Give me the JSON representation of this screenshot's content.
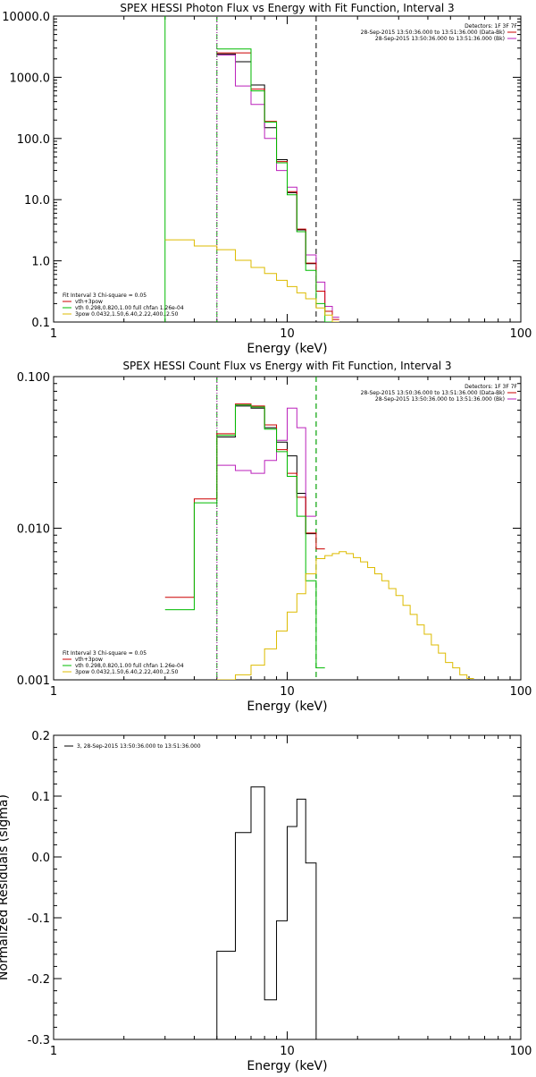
{
  "chart_data": [
    {
      "type": "line",
      "title": "SPEX HESSI Photon Flux vs Energy with Fit Function, Interval 3",
      "xlabel": "Energy (keV)",
      "ylabel": "",
      "x_scale": "log",
      "y_scale": "log",
      "xlim": [
        1,
        100
      ],
      "ylim": [
        0.1,
        10000
      ],
      "x_ticks": [
        {
          "v": 1,
          "label": "1"
        },
        {
          "v": 10,
          "label": "10"
        },
        {
          "v": 100,
          "label": "100"
        }
      ],
      "y_ticks": [
        {
          "v": 0.1,
          "label": "0.1"
        },
        {
          "v": 1,
          "label": "1.0"
        },
        {
          "v": 10,
          "label": "10.0"
        },
        {
          "v": 100,
          "label": "100.0"
        },
        {
          "v": 1000,
          "label": "1000.0"
        },
        {
          "v": 10000,
          "label": "10000.0"
        }
      ],
      "top_legend": {
        "header": "Detectors: 1F 3F 7F",
        "items": [
          {
            "text": "28-Sep-2015 13:50:36.000 to 13:51:36.000 (Data-Bk)",
            "color": "#cc0000"
          },
          {
            "text": "28-Sep-2015 13:50:36.000 to 13:51:36.000 (Bk)",
            "color": "#bb22bb"
          }
        ]
      },
      "bottom_legend": {
        "header": "Fit Interval 3   Chi-square = 0.05",
        "items": [
          {
            "text": "vth+3pow",
            "color": "#cc0000"
          },
          {
            "text": "vth 0.298,0.820,1.00  full chfan 1.26e-04",
            "color": "#00bb00"
          },
          {
            "text": "3pow 0.0432,1.50,6.40,2.22,400.,2.50",
            "color": "#ddbb00"
          }
        ]
      },
      "vlines": [
        {
          "x": 3.0,
          "color": "#00bb00",
          "style": "solid"
        },
        {
          "x": 5.0,
          "color": "#000000",
          "style": "dotted"
        },
        {
          "x": 5.0,
          "color": "#00bb00",
          "style": "dashed"
        },
        {
          "x": 5.0,
          "color": "#bb22bb",
          "style": "dotted"
        },
        {
          "x": 13.3,
          "color": "#000000",
          "style": "dashed"
        }
      ],
      "series": [
        {
          "role": "data",
          "color": "#000000",
          "bins": [
            [
              5,
              6,
              2400
            ],
            [
              6,
              7,
              1800
            ],
            [
              7,
              8,
              750
            ],
            [
              8,
              9,
              150
            ],
            [
              9,
              10,
              45
            ],
            [
              10,
              11,
              13
            ],
            [
              11,
              12,
              3.2
            ],
            [
              12,
              13.3,
              0.9
            ]
          ]
        },
        {
          "role": "background",
          "color": "#bb22bb",
          "bins": [
            [
              5,
              6,
              2300
            ],
            [
              6,
              7,
              720
            ],
            [
              7,
              8,
              360
            ],
            [
              8,
              9,
              100
            ],
            [
              9,
              10,
              30
            ],
            [
              10,
              11,
              16
            ],
            [
              11,
              12,
              3.0
            ],
            [
              12,
              13.3,
              1.25
            ],
            [
              13.3,
              14.5,
              0.45
            ],
            [
              14.5,
              15.6,
              0.18
            ],
            [
              15.6,
              16.7,
              0.12
            ]
          ]
        },
        {
          "role": "fit-total",
          "color": "#cc0000",
          "bins": [
            [
              5,
              6,
              2500
            ],
            [
              6,
              7,
              2500
            ],
            [
              7,
              8,
              640
            ],
            [
              8,
              9,
              190
            ],
            [
              9,
              10,
              42
            ],
            [
              10,
              11,
              13.5
            ],
            [
              11,
              12,
              3.3
            ],
            [
              12,
              13.3,
              0.92
            ],
            [
              13.3,
              14.5,
              0.32
            ],
            [
              14.5,
              15.6,
              0.15
            ],
            [
              15.6,
              16.7,
              0.11
            ]
          ]
        },
        {
          "role": "thermal",
          "color": "#00bb00",
          "bins": [
            [
              5,
              6,
              2900
            ],
            [
              6,
              7,
              2900
            ],
            [
              7,
              8,
              600
            ],
            [
              8,
              9,
              185
            ],
            [
              9,
              10,
              40
            ],
            [
              10,
              11,
              12
            ],
            [
              11,
              12,
              3.0
            ],
            [
              12,
              13.3,
              0.7
            ],
            [
              13.3,
              14.5,
              0.2
            ],
            [
              14.5,
              15.6,
              0.1
            ]
          ]
        },
        {
          "role": "power-law",
          "color": "#ddbb00",
          "bins": [
            [
              3,
              4,
              2.2
            ],
            [
              4,
              5,
              1.75
            ],
            [
              5,
              6,
              1.52
            ],
            [
              6,
              7,
              1.02
            ],
            [
              7,
              8,
              0.78
            ],
            [
              8,
              9,
              0.62
            ],
            [
              9,
              10,
              0.48
            ],
            [
              10,
              11,
              0.38
            ],
            [
              11,
              12,
              0.3
            ],
            [
              12,
              13.3,
              0.24
            ],
            [
              13.3,
              14.5,
              0.17
            ],
            [
              14.5,
              15.6,
              0.13
            ],
            [
              15.6,
              16.7,
              0.1
            ]
          ]
        }
      ]
    },
    {
      "type": "line",
      "title": "SPEX HESSI Count Flux vs Energy with Fit Function, Interval 3",
      "xlabel": "Energy (keV)",
      "ylabel": "",
      "x_scale": "log",
      "y_scale": "log",
      "xlim": [
        1,
        100
      ],
      "ylim": [
        0.001,
        0.1
      ],
      "x_ticks": [
        {
          "v": 1,
          "label": "1"
        },
        {
          "v": 10,
          "label": "10"
        },
        {
          "v": 100,
          "label": "100"
        }
      ],
      "y_ticks": [
        {
          "v": 0.001,
          "label": "0.001"
        },
        {
          "v": 0.01,
          "label": "0.010"
        },
        {
          "v": 0.1,
          "label": "0.100"
        }
      ],
      "top_legend": {
        "header": "Detectors: 1F 3F 7F",
        "items": [
          {
            "text": "28-Sep-2015 13:50:36.000 to 13:51:36.000 (Data-Bk)",
            "color": "#cc0000"
          },
          {
            "text": "28-Sep-2015 13:50:36.000 to 13:51:36.000 (Bk)",
            "color": "#bb22bb"
          }
        ]
      },
      "bottom_legend": {
        "header": "Fit Interval 3   Chi-square = 0.05",
        "items": [
          {
            "text": "vth+3pow",
            "color": "#cc0000"
          },
          {
            "text": "vth 0.298,0.820,1.00  full chfan 1.26e-04",
            "color": "#00bb00"
          },
          {
            "text": "3pow 0.0432,1.50,6.40,2.22,400.,2.50",
            "color": "#ddbb00"
          }
        ]
      },
      "vlines": [
        {
          "x": 5.0,
          "color": "#000000",
          "style": "dotted"
        },
        {
          "x": 5.0,
          "color": "#00bb00",
          "style": "dashed"
        },
        {
          "x": 5.0,
          "color": "#bb22bb",
          "style": "dotted"
        },
        {
          "x": 13.3,
          "color": "#000000",
          "style": "dashed"
        },
        {
          "x": 13.3,
          "color": "#00bb00",
          "style": "dashed"
        }
      ],
      "series": [
        {
          "role": "data",
          "color": "#000000",
          "bins": [
            [
              5,
              6,
              0.04
            ],
            [
              6,
              7,
              0.064
            ],
            [
              7,
              8,
              0.062
            ],
            [
              8,
              9,
              0.046
            ],
            [
              9,
              10,
              0.037
            ],
            [
              10,
              11,
              0.03
            ],
            [
              11,
              12,
              0.017
            ],
            [
              12,
              13.3,
              0.0092
            ]
          ]
        },
        {
          "role": "background",
          "color": "#bb22bb",
          "bins": [
            [
              5,
              6,
              0.026
            ],
            [
              6,
              7,
              0.024
            ],
            [
              7,
              8,
              0.023
            ],
            [
              8,
              9,
              0.028
            ],
            [
              9,
              10,
              0.038
            ],
            [
              10,
              11,
              0.062
            ],
            [
              11,
              12,
              0.046
            ],
            [
              12,
              13.3,
              0.012
            ]
          ]
        },
        {
          "role": "fit-total",
          "color": "#cc0000",
          "bins": [
            [
              3,
              4,
              0.0035
            ],
            [
              4,
              5,
              0.0156
            ],
            [
              5,
              6,
              0.042
            ],
            [
              6,
              7,
              0.066
            ],
            [
              7,
              8,
              0.064
            ],
            [
              8,
              9,
              0.048
            ],
            [
              9,
              10,
              0.033
            ],
            [
              10,
              11,
              0.023
            ],
            [
              11,
              12,
              0.016
            ],
            [
              12,
              13.3,
              0.0093
            ],
            [
              13.3,
              14.5,
              0.0073
            ]
          ]
        },
        {
          "role": "thermal",
          "color": "#00bb00",
          "bins": [
            [
              3,
              4,
              0.0029
            ],
            [
              4,
              5,
              0.0147
            ],
            [
              5,
              6,
              0.041
            ],
            [
              6,
              7,
              0.065
            ],
            [
              7,
              8,
              0.063
            ],
            [
              8,
              9,
              0.045
            ],
            [
              9,
              10,
              0.032
            ],
            [
              10,
              11,
              0.022
            ],
            [
              11,
              12,
              0.012
            ],
            [
              12,
              13.3,
              0.0045
            ],
            [
              13.3,
              14.5,
              0.0012
            ]
          ]
        },
        {
          "role": "power-law",
          "color": "#ddbb00",
          "bins": [
            [
              5,
              6,
              0.001
            ],
            [
              6,
              7,
              0.00108
            ],
            [
              7,
              8,
              0.00125
            ],
            [
              8,
              9,
              0.0016
            ],
            [
              9,
              10,
              0.0021
            ],
            [
              10,
              11,
              0.0028
            ],
            [
              11,
              12,
              0.0037
            ],
            [
              12,
              13.3,
              0.005
            ],
            [
              13.3,
              14.5,
              0.0063
            ],
            [
              14.5,
              15.6,
              0.0066
            ],
            [
              15.6,
              16.7,
              0.0068
            ],
            [
              16.7,
              17.9,
              0.007
            ],
            [
              17.9,
              19.2,
              0.0068
            ],
            [
              19.2,
              20.6,
              0.0064
            ],
            [
              20.6,
              22.1,
              0.006
            ],
            [
              22.1,
              23.7,
              0.0055
            ],
            [
              23.7,
              25.4,
              0.005
            ],
            [
              25.4,
              27.2,
              0.0045
            ],
            [
              27.2,
              29.2,
              0.004
            ],
            [
              29.2,
              31.3,
              0.0036
            ],
            [
              31.3,
              33.6,
              0.0031
            ],
            [
              33.6,
              36.0,
              0.0027
            ],
            [
              36.0,
              38.6,
              0.0023
            ],
            [
              38.6,
              41.4,
              0.002
            ],
            [
              41.4,
              44.4,
              0.0017
            ],
            [
              44.4,
              47.6,
              0.0015
            ],
            [
              47.6,
              51.1,
              0.0013
            ],
            [
              51.1,
              54.8,
              0.0012
            ],
            [
              54.8,
              58.8,
              0.00108
            ],
            [
              58.8,
              63.0,
              0.00102
            ]
          ]
        }
      ]
    },
    {
      "type": "line",
      "title": "",
      "xlabel": "Energy (keV)",
      "ylabel": "Normalized Residuals (sigma)",
      "x_scale": "log",
      "y_scale": "linear",
      "xlim": [
        1,
        100
      ],
      "ylim": [
        -0.3,
        0.2
      ],
      "x_ticks": [
        {
          "v": 1,
          "label": "1"
        },
        {
          "v": 10,
          "label": "10"
        },
        {
          "v": 100,
          "label": "100"
        }
      ],
      "y_ticks": [
        {
          "v": -0.3,
          "label": "-0.3"
        },
        {
          "v": -0.2,
          "label": "-0.2"
        },
        {
          "v": -0.1,
          "label": "-0.1"
        },
        {
          "v": 0,
          "label": "0.0"
        },
        {
          "v": 0.1,
          "label": "0.1"
        },
        {
          "v": 0.2,
          "label": "0.2"
        }
      ],
      "top_legend": {
        "header": "",
        "items": [
          {
            "text": "3, 28-Sep-2015 13:50:36.000 to 13:51:36.000",
            "color": "#000000"
          }
        ]
      },
      "series": [
        {
          "role": "residuals",
          "color": "#000000",
          "bins": [
            [
              5,
              6,
              -0.155
            ],
            [
              6,
              7,
              0.04
            ],
            [
              7,
              8,
              0.115
            ],
            [
              8,
              9,
              -0.235
            ],
            [
              9,
              10,
              -0.105
            ],
            [
              10,
              11,
              0.05
            ],
            [
              11,
              12,
              0.095
            ],
            [
              12,
              13.3,
              -0.01
            ]
          ],
          "drop_edges_to_bottom": true
        }
      ]
    }
  ]
}
